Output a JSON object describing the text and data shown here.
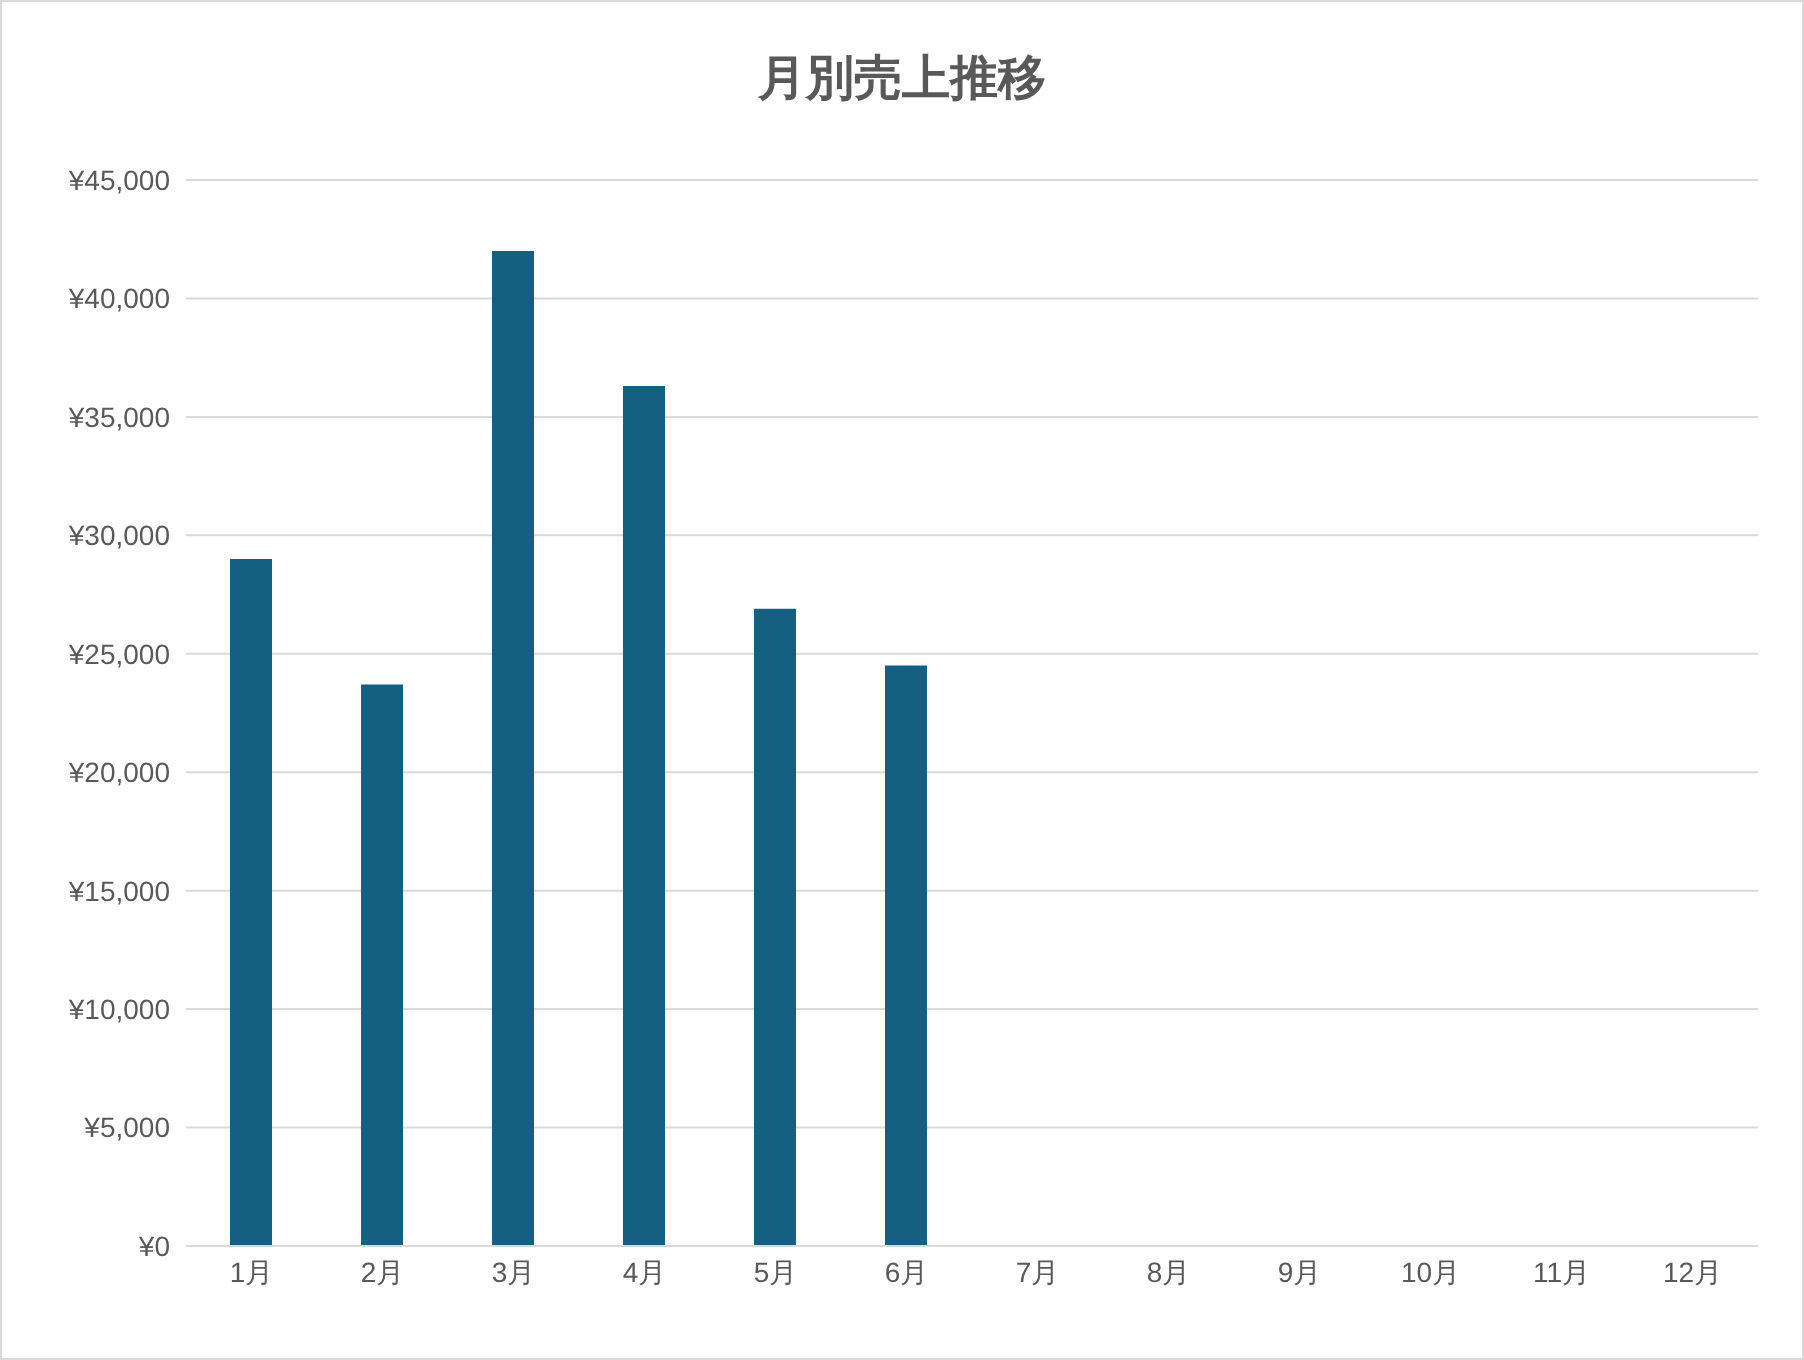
{
  "chart_data": {
    "type": "bar",
    "title": "月別売上推移",
    "categories": [
      "1月",
      "2月",
      "3月",
      "4月",
      "5月",
      "6月",
      "7月",
      "8月",
      "9月",
      "10月",
      "11月",
      "12月"
    ],
    "series": [
      {
        "color": "#155f82",
        "values": [
          29000,
          23700,
          42000,
          36300,
          26900,
          24500,
          null,
          null,
          null,
          null,
          null,
          null
        ]
      }
    ],
    "ylim": [
      0,
      45000
    ],
    "yticks": [
      {
        "value": 0,
        "label": "¥0"
      },
      {
        "value": 5000,
        "label": "¥5,000"
      },
      {
        "value": 10000,
        "label": "¥10,000"
      },
      {
        "value": 15000,
        "label": "¥15,000"
      },
      {
        "value": 20000,
        "label": "¥20,000"
      },
      {
        "value": 25000,
        "label": "¥25,000"
      },
      {
        "value": 30000,
        "label": "¥30,000"
      },
      {
        "value": 35000,
        "label": "¥35,000"
      },
      {
        "value": 40000,
        "label": "¥40,000"
      },
      {
        "value": 45000,
        "label": "¥45,000"
      }
    ],
    "grid": "y",
    "legend": false
  }
}
